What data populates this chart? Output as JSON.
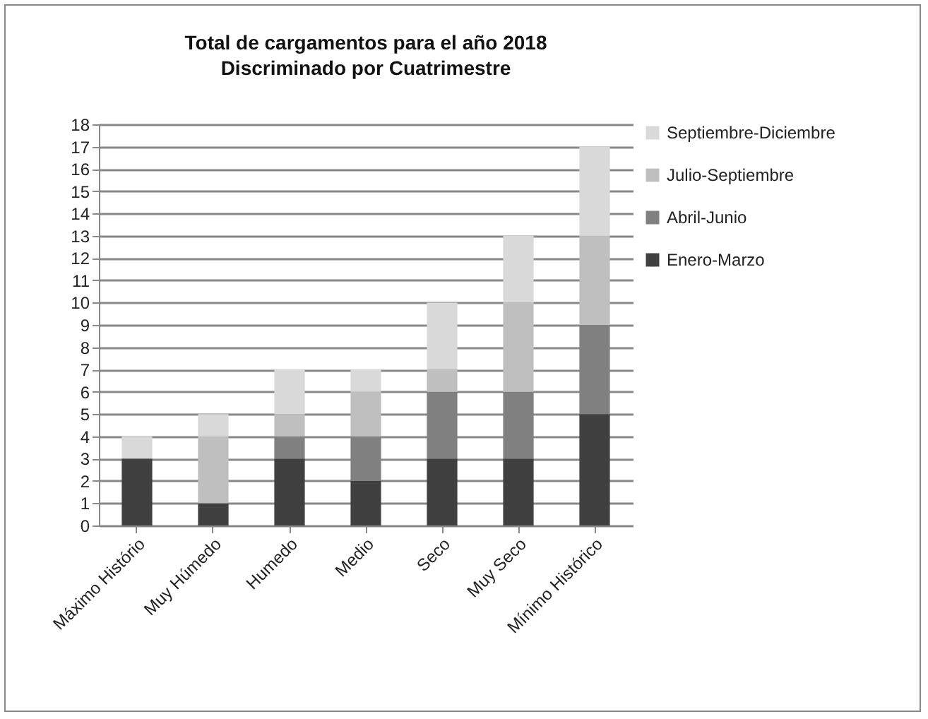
{
  "chart_data": {
    "type": "bar",
    "title": "Total de cargamentos para el año 2018",
    "subtitle": "Discriminado por Cuatrimestre",
    "categories": [
      "Máximo Histório",
      "Muy Húmedo",
      "Humedo",
      "Medio",
      "Seco",
      "Muy Seco",
      "Mínimo Histórico"
    ],
    "stacked": true,
    "series": [
      {
        "name": "Enero-Marzo",
        "color": "#404040",
        "values": [
          3,
          1,
          3,
          2,
          3,
          3,
          5
        ]
      },
      {
        "name": "Abril-Junio",
        "color": "#808080",
        "values": [
          0,
          0,
          1,
          2,
          3,
          3,
          4
        ]
      },
      {
        "name": "Julio-Septiembre",
        "color": "#bfbfbf",
        "values": [
          0,
          3,
          1,
          2,
          1,
          4,
          4
        ]
      },
      {
        "name": "Septiembre-Diciembre",
        "color": "#d9d9d9",
        "values": [
          1,
          1,
          2,
          1,
          3,
          3,
          4
        ]
      }
    ],
    "ylim": [
      0,
      18
    ],
    "yticks": [
      0,
      1,
      2,
      3,
      4,
      5,
      6,
      7,
      8,
      9,
      10,
      11,
      12,
      13,
      14,
      15,
      16,
      17,
      18
    ],
    "grid": "y",
    "legend": "right"
  }
}
